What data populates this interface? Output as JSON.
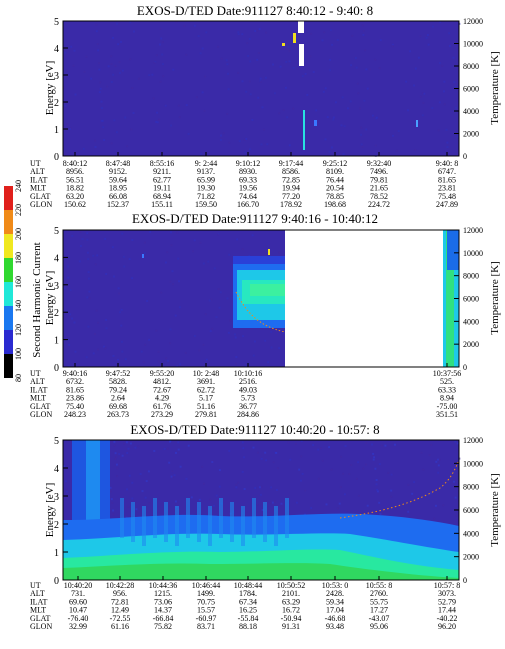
{
  "chart_data": [
    {
      "type": "heatmap",
      "title": "EXOS-D/TED   Date:911127  8:40:12 - 9:40: 8",
      "ylabel": "Energy [eV]",
      "ylabel_right": "Temperature [K]",
      "ylim": [
        0,
        5
      ],
      "ylim_right": [
        0,
        12000
      ],
      "yticks": [
        "0",
        "1",
        "2",
        "3",
        "4",
        "5"
      ],
      "yticks_right": [
        "0",
        "2000",
        "4000",
        "6000",
        "8000",
        "10000",
        "12000"
      ],
      "ephemeris": {
        "labels": [
          "UT",
          "ALT",
          "ILAT",
          "MLT",
          "GLAT",
          "GLON"
        ],
        "columns": [
          [
            "8:40:12",
            "8956.",
            "56.51",
            "18.82",
            "63.20",
            "150.62"
          ],
          [
            "8:47:48",
            "9152.",
            "59.64",
            "18.95",
            "66.08",
            "152.37"
          ],
          [
            "8:55:16",
            "9211.",
            "62.77",
            "19.11",
            "68.94",
            "155.11"
          ],
          [
            "9: 2:44",
            "9137.",
            "65.99",
            "19.30",
            "71.82",
            "159.50"
          ],
          [
            "9:10:12",
            "8930.",
            "69.33",
            "19.56",
            "74.64",
            "166.70"
          ],
          [
            "9:17:44",
            "8586.",
            "72.85",
            "19.94",
            "77.20",
            "178.92"
          ],
          [
            "9:25:12",
            "8109.",
            "76.44",
            "20.54",
            "78.85",
            "198.68"
          ],
          [
            "9:32:40",
            "7496.",
            "79.81",
            "21.65",
            "78.52",
            "224.72"
          ],
          [
            "9:40: 8",
            "6747.",
            "81.65",
            "23.81",
            "75.48",
            "247.89"
          ]
        ]
      }
    },
    {
      "type": "heatmap",
      "title": "EXOS-D/TED   Date:911127  9:40:16 - 10:40:12",
      "ylabel": "Energy [eV]",
      "ylabel_right": "Temperature [K]",
      "ylim": [
        0,
        5
      ],
      "ylim_right": [
        0,
        12000
      ],
      "yticks": [
        "0",
        "1",
        "2",
        "3",
        "4",
        "5"
      ],
      "yticks_right": [
        "0",
        "2000",
        "4000",
        "6000",
        "8000",
        "10000",
        "12000"
      ],
      "colorbar": {
        "label": "Second Harmonic Current",
        "ticks": [
          "80",
          "100",
          "120",
          "140",
          "160",
          "180",
          "200",
          "220",
          "240"
        ]
      },
      "ephemeris": {
        "labels": [
          "UT",
          "ALT",
          "ILAT",
          "MLT",
          "GLAT",
          "GLON"
        ],
        "columns": [
          [
            "9:40:16",
            "6732.",
            "81.65",
            "23.86",
            "75.40",
            "248.23"
          ],
          [
            "9:47:52",
            "5828.",
            "79.24",
            "2.64",
            "69.68",
            "263.73"
          ],
          [
            "9:55:20",
            "4812.",
            "72.67",
            "4.29",
            "61.76",
            "273.29"
          ],
          [
            "10: 2:48",
            "3691.",
            "62.72",
            "5.17",
            "51.16",
            "279.81"
          ],
          [
            "10:10:16",
            "2516.",
            "49.03",
            "5.73",
            "36.77",
            "284.86"
          ],
          [
            "10:37:56",
            "525.",
            "63.33",
            "8.94",
            "-75.00",
            "351.51"
          ]
        ]
      }
    },
    {
      "type": "heatmap",
      "title": "EXOS-D/TED   Date:911127  10:40:20 - 10:57: 8",
      "ylabel": "Energy [eV]",
      "ylabel_right": "Temperature [K]",
      "ylim": [
        0,
        5
      ],
      "ylim_right": [
        0,
        12000
      ],
      "yticks": [
        "0",
        "1",
        "2",
        "3",
        "4",
        "5"
      ],
      "yticks_right": [
        "0",
        "2000",
        "4000",
        "6000",
        "8000",
        "10000",
        "12000"
      ],
      "ephemeris": {
        "labels": [
          "UT",
          "ALT",
          "ILAT",
          "MLT",
          "GLAT",
          "GLON"
        ],
        "columns": [
          [
            "10:40:20",
            "731.",
            "69.60",
            "10.47",
            "-76.40",
            "32.99"
          ],
          [
            "10:42:28",
            "956.",
            "72.81",
            "12.49",
            "-72.55",
            "61.16"
          ],
          [
            "10:44:36",
            "1215.",
            "73.06",
            "14.37",
            "-66.84",
            "75.82"
          ],
          [
            "10:46:44",
            "1499.",
            "70.75",
            "15.57",
            "-60.97",
            "83.71"
          ],
          [
            "10:48:44",
            "1784.",
            "67.34",
            "16.25",
            "-55.84",
            "88.18"
          ],
          [
            "10:50:52",
            "2101.",
            "63.29",
            "16.72",
            "-50.94",
            "91.31"
          ],
          [
            "10:53: 0",
            "2428.",
            "59.34",
            "17.04",
            "-46.68",
            "93.48"
          ],
          [
            "10:55: 8",
            "2760.",
            "55.75",
            "17.27",
            "-43.07",
            "95.06"
          ],
          [
            "10:57: 8",
            "3073.",
            "52.79",
            "17.44",
            "-40.22",
            "96.20"
          ]
        ]
      }
    }
  ]
}
